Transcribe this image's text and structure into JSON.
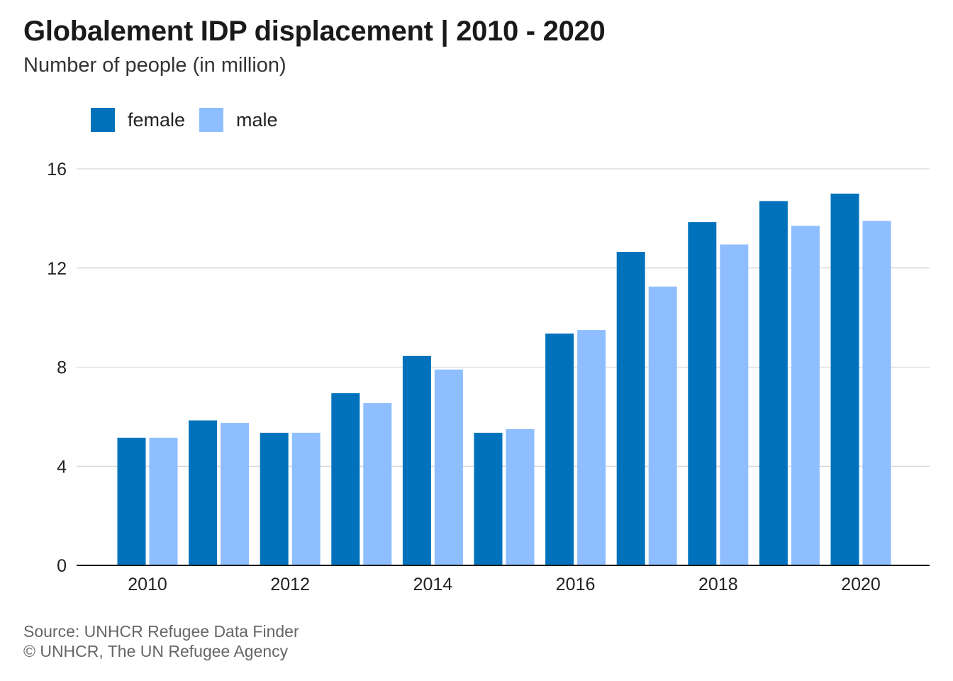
{
  "header": {
    "title": "Globalement IDP displacement | 2010 - 2020",
    "subtitle": "Number of people (in million)"
  },
  "footer": {
    "source": "Source: UNHCR Refugee Data Finder",
    "copyright": "© UNHCR, The UN Refugee Agency"
  },
  "colors": {
    "female": "#0072bc",
    "male": "#8ebeff",
    "grid": "#cccccc",
    "axis": "#1a1a1a"
  },
  "chart_data": {
    "type": "bar",
    "title": "Globalement IDP displacement | 2010 - 2020",
    "subtitle": "Number of people (in million)",
    "xlabel": "",
    "ylabel": "",
    "categories": [
      "2010",
      "2011",
      "2012",
      "2013",
      "2014",
      "2015",
      "2016",
      "2017",
      "2018",
      "2019",
      "2020"
    ],
    "x_tick_labels": [
      "2010",
      "2012",
      "2014",
      "2016",
      "2018",
      "2020"
    ],
    "y_ticks": [
      0,
      4,
      8,
      12,
      16
    ],
    "ylim": [
      0,
      16
    ],
    "grid": true,
    "legend_position": "top-left",
    "series": [
      {
        "name": "female",
        "color": "#0072bc",
        "values": [
          5.15,
          5.85,
          5.35,
          6.95,
          8.45,
          5.35,
          9.35,
          12.65,
          13.85,
          14.7,
          15.0
        ]
      },
      {
        "name": "male",
        "color": "#8ebeff",
        "values": [
          5.15,
          5.75,
          5.35,
          6.55,
          7.9,
          5.5,
          9.5,
          11.25,
          12.95,
          13.7,
          13.9
        ]
      }
    ]
  }
}
